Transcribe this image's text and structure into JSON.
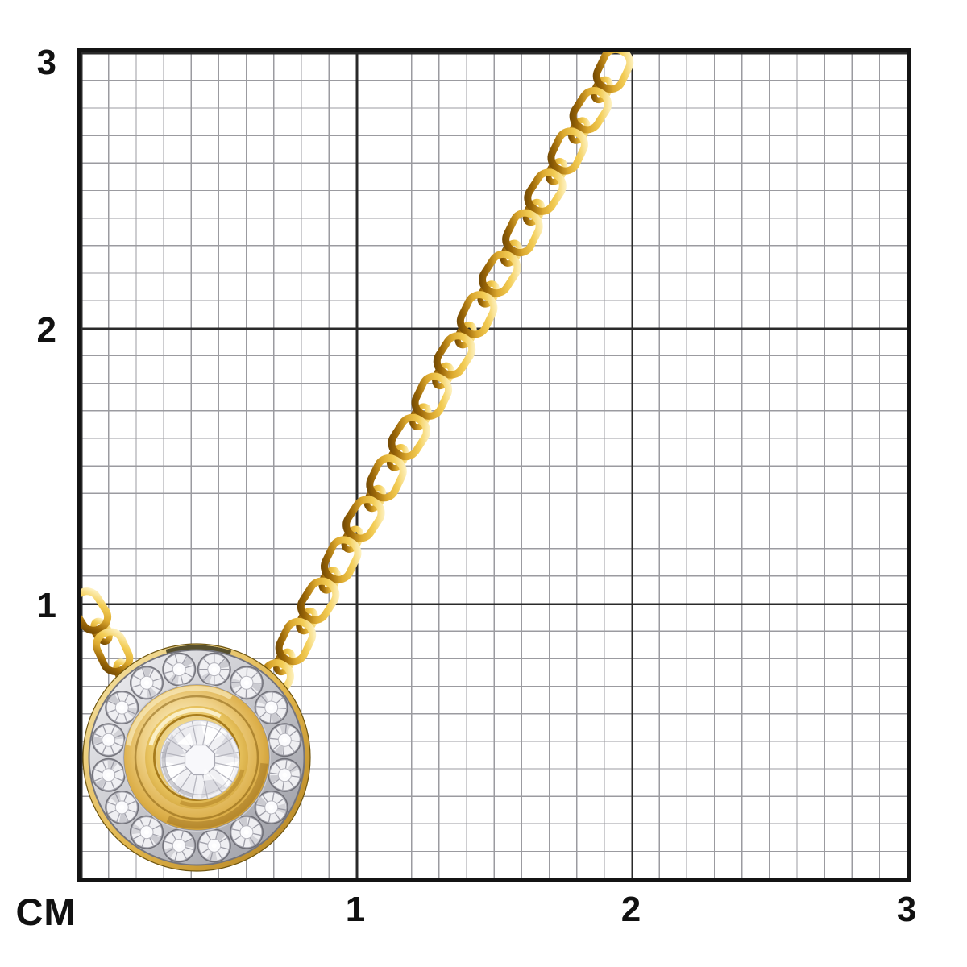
{
  "scene": {
    "type": "jewelry-product-photo-on-cm-grid",
    "background": "#ffffff"
  },
  "ruler": {
    "unit_label": "CM",
    "range_cm": 3,
    "minor_divisions_per_cm": 10,
    "y_axis_labels": [
      {
        "cm": 3,
        "text": "3"
      },
      {
        "cm": 2,
        "text": "2"
      },
      {
        "cm": 1,
        "text": "1"
      }
    ],
    "x_axis_labels": [
      {
        "cm": 1,
        "text": "1"
      },
      {
        "cm": 2,
        "text": "2"
      },
      {
        "cm": 3,
        "text": "3"
      }
    ],
    "colors": {
      "border": "#141414",
      "major_line": "#2a2a2a",
      "minor_line": "#9b9ba0",
      "label_text": "#111111"
    }
  },
  "product": {
    "name": "diamond-halo-pendant-necklace",
    "chain_style": "yellow-gold cable chain",
    "pendant": {
      "style": "round pave diamond halo with bezel-set round center diamond",
      "halo_stone_count": 16
    },
    "colors": {
      "gold_highlight": "#FFF6CE",
      "gold_light": "#F3CD56",
      "gold_mid": "#DCA92F",
      "gold_deep": "#9A6607",
      "gold_shadow": "#6B4403",
      "rim_light": "#F7E7AE",
      "rim_mid": "#E0B44A",
      "rim_dark": "#AE7D1E",
      "donut_light": "#FBF2CC",
      "donut_mid": "#EFD187",
      "donut_deep": "#DCAF4A",
      "donut_dark": "#B9861B",
      "bezel_light": "#FAF0C4",
      "bezel_mid": "#E8C35F",
      "bezel_dark": "#C9992F",
      "bezel_lip": "#A87C1C",
      "pave_light": "#ECECEF",
      "pave_dark": "#9FA0A8",
      "pave_edge": "#74747C",
      "crevice": "#63636B",
      "stone_face": "#EFEFF2",
      "stone_line": "#9E9EA8",
      "diamond_base": "#F1F1F4",
      "diamond_line": "#B2B2BB",
      "diamond_white": "#FFFFFF",
      "diamond_shade": "#D8D8DF",
      "slot_dark": "#57502E"
    }
  }
}
